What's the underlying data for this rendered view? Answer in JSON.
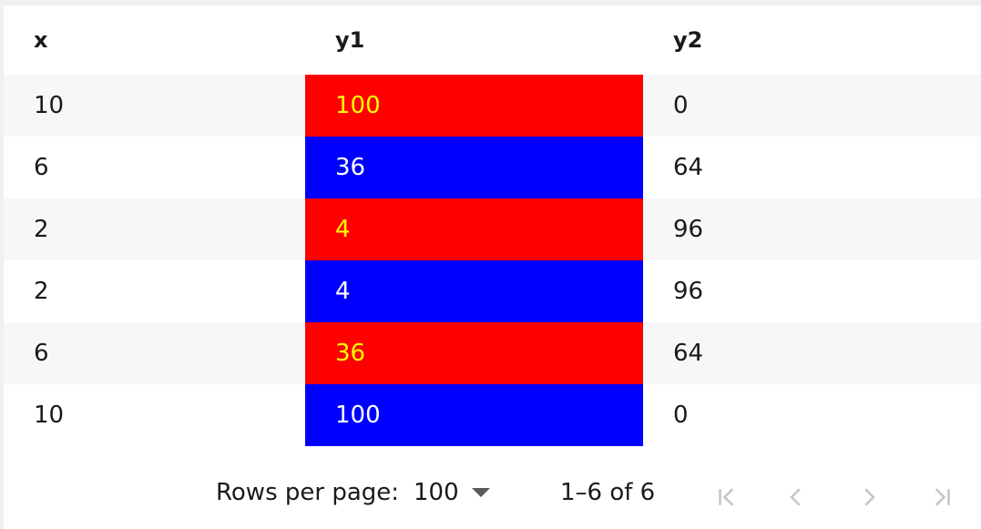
{
  "table": {
    "headers": [
      "x",
      "y1",
      "y2"
    ],
    "rows": [
      {
        "x": "10",
        "y1": "100",
        "y2": "0"
      },
      {
        "x": "6",
        "y1": "36",
        "y2": "64"
      },
      {
        "x": "2",
        "y1": "4",
        "y2": "96"
      },
      {
        "x": "2",
        "y1": "4",
        "y2": "96"
      },
      {
        "x": "6",
        "y1": "36",
        "y2": "64"
      },
      {
        "x": "10",
        "y1": "100",
        "y2": "0"
      }
    ]
  },
  "colors": {
    "red_cell": "#ff0000",
    "red_text": "#ffff00",
    "blue_cell": "#0000ff",
    "blue_text": "#ffffff"
  },
  "pagination": {
    "rows_per_page_label": "Rows per page:",
    "rows_per_page_value": "100",
    "range_text": "1–6 of 6",
    "icons": [
      "first-page-icon",
      "previous-page-icon",
      "next-page-icon",
      "last-page-icon"
    ]
  }
}
